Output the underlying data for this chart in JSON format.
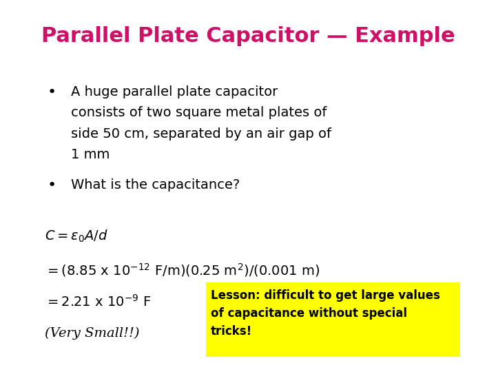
{
  "title": "Parallel Plate Capacitor — Example",
  "title_color": "#CC1166",
  "background_color": "#FFFFFF",
  "bullet1_lines": [
    "A huge parallel plate capacitor",
    "consists of two square metal plates of",
    "side 50 cm, separated by an air gap of",
    "1 mm"
  ],
  "bullet2": "What is the capacitance?",
  "formula_line1": "$C = \\varepsilon_0 A/d$",
  "formula_line2": "$= (8.85\\ \\mathrm{x}\\ 10^{-12}\\ \\mathrm{F/m})(0.25\\ \\mathrm{m}^2)/(0.001\\ \\mathrm{m})$",
  "formula_line3": "$= 2.21\\ \\mathrm{x}\\ 10^{-9}\\ \\mathrm{F}$",
  "formula_line4": "(Very Small!!)",
  "lesson_text": "Lesson: difficult to get large values\nof capacitance without special\ntricks!",
  "lesson_bg": "#FFFF00",
  "lesson_text_color": "#000000",
  "text_color": "#000000",
  "title_fontsize": 22,
  "body_fontsize": 14,
  "formula_fontsize": 14,
  "lesson_fontsize": 12
}
